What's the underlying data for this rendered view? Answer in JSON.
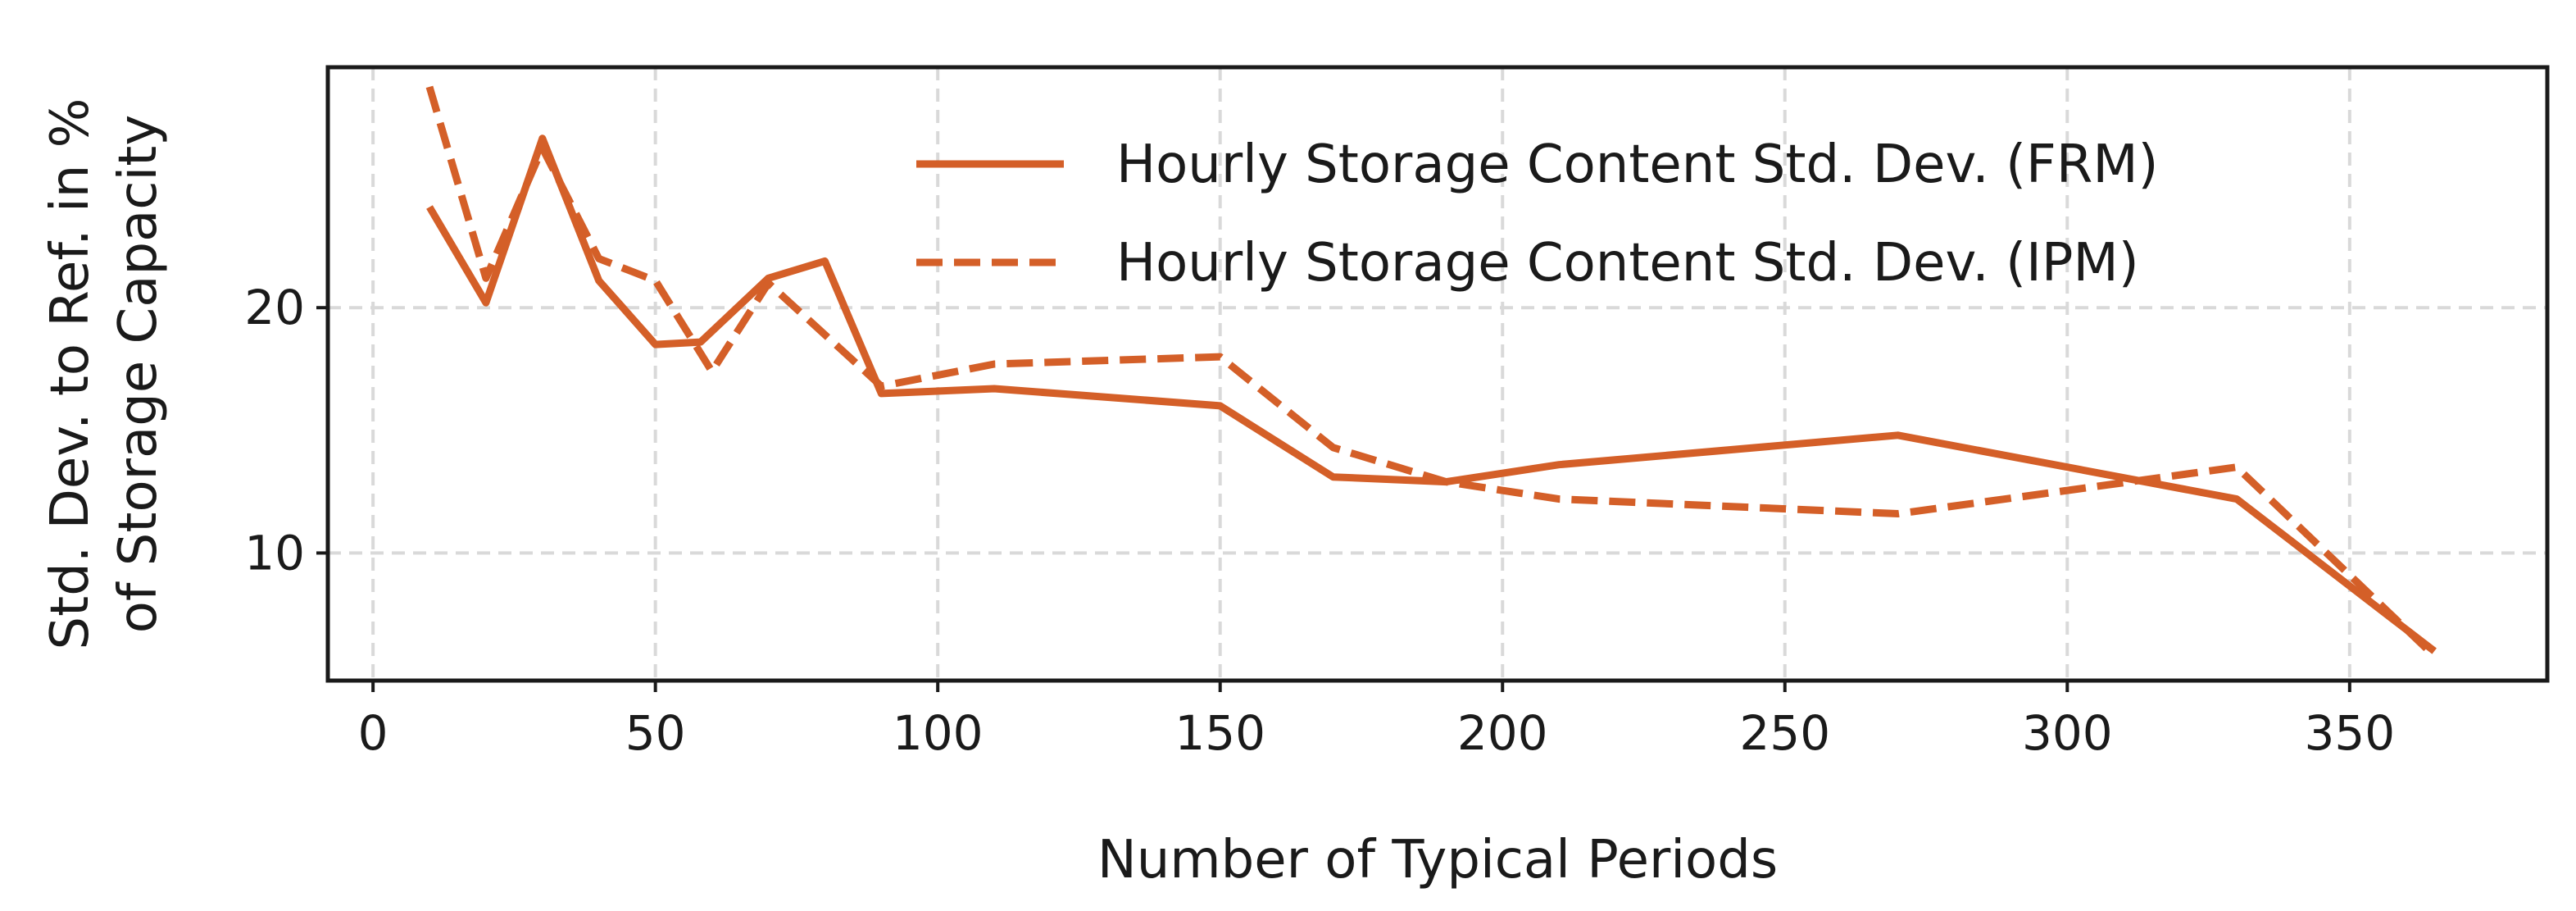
{
  "chart_data": {
    "type": "line",
    "title": "",
    "xlabel": "Number of Typical Periods",
    "ylabel_lines": [
      "Std. Dev. to Ref. in %",
      "of Storage Capacity"
    ],
    "xlim": [
      -8,
      385
    ],
    "ylim": [
      4.8,
      29.8
    ],
    "xticks": [
      0,
      50,
      100,
      150,
      200,
      250,
      300,
      350
    ],
    "yticks": [
      10,
      20
    ],
    "grid": true,
    "legend_position": "top-right",
    "series": [
      {
        "name": "Hourly Storage Content Std. Dev. (FRM)",
        "style": "solid",
        "color": "#d45f28",
        "x": [
          10,
          20,
          30,
          40,
          50,
          58,
          70,
          80,
          90,
          110,
          150,
          170,
          190,
          210,
          270,
          330,
          365
        ],
        "y": [
          24.1,
          20.2,
          26.9,
          21.1,
          18.5,
          18.6,
          21.2,
          21.9,
          16.5,
          16.7,
          16.0,
          13.1,
          12.9,
          13.6,
          14.8,
          12.2,
          6.0
        ]
      },
      {
        "name": "Hourly Storage Content Std. Dev. (IPM)",
        "style": "dashed",
        "color": "#d45f28",
        "x": [
          10,
          20,
          30,
          40,
          50,
          60,
          70,
          90,
          110,
          150,
          170,
          190,
          210,
          270,
          330,
          365
        ],
        "y": [
          29.0,
          21.2,
          26.5,
          22.0,
          21.1,
          17.4,
          21.0,
          16.8,
          17.7,
          18.0,
          14.3,
          12.9,
          12.2,
          11.6,
          13.5,
          5.8
        ]
      }
    ]
  }
}
